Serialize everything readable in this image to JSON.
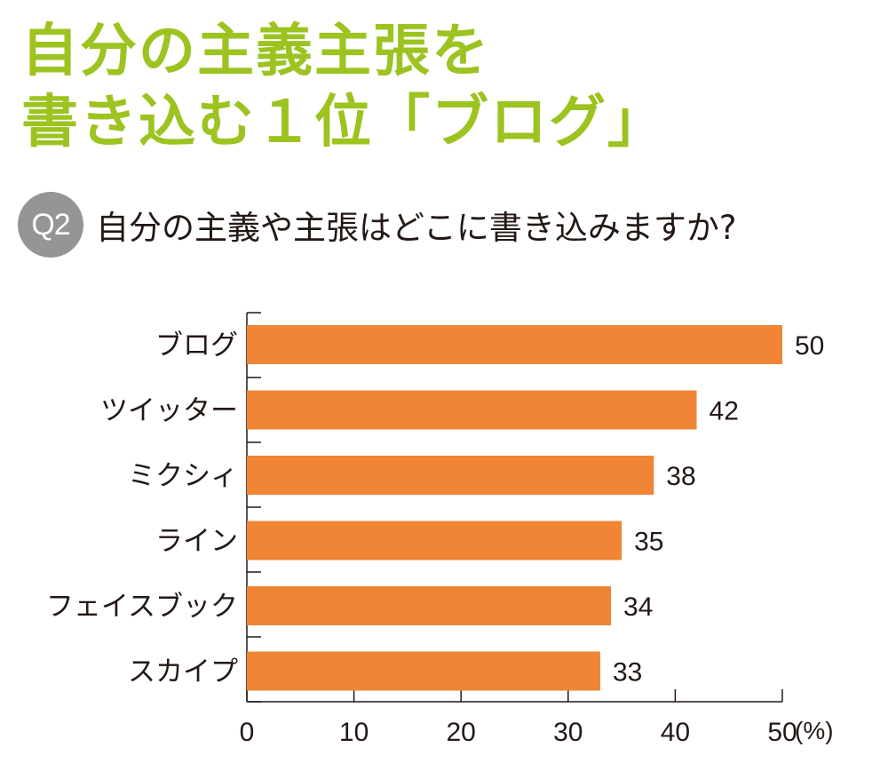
{
  "headline": {
    "line1": "自分の主義主張を",
    "line2": "書き込む１位「ブログ」"
  },
  "question": {
    "badge": "Q2",
    "text": "自分の主義や主張はどこに書き込みますか?"
  },
  "colors": {
    "headline": "#9cc31f",
    "bar": "#ef8535",
    "badge": "#959595",
    "text": "#231815"
  },
  "chart_data": {
    "type": "bar",
    "orientation": "horizontal",
    "categories": [
      "ブログ",
      "ツイッター",
      "ミクシィ",
      "ライン",
      "フェイスブック",
      "スカイプ"
    ],
    "values": [
      50,
      42,
      38,
      35,
      34,
      33
    ],
    "value_labels": [
      "50",
      "42",
      "38",
      "35",
      "34",
      "33"
    ],
    "xlim": [
      0,
      50
    ],
    "x_ticks": [
      0,
      10,
      20,
      30,
      40,
      50
    ],
    "x_tick_labels": [
      "0",
      "10",
      "20",
      "30",
      "40",
      "50"
    ],
    "x_unit": "(%)",
    "grid": false,
    "legend": "none"
  }
}
